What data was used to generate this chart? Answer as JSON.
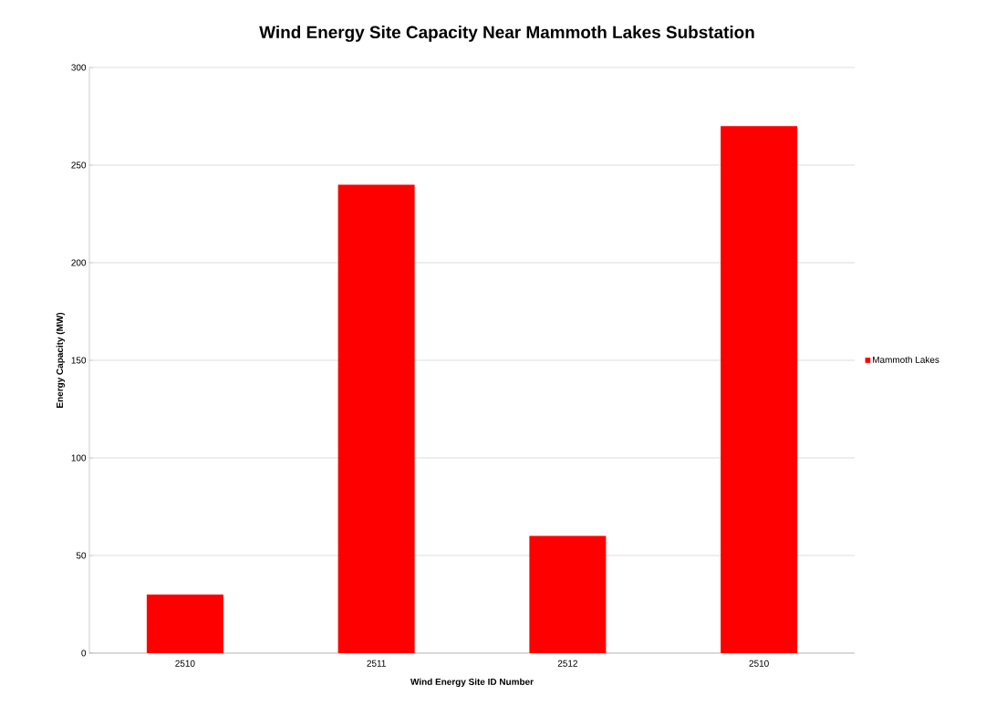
{
  "chart_data": {
    "type": "bar",
    "title": "Wind Energy Site Capacity Near Mammoth Lakes Substation",
    "xlabel": "Wind Energy Site ID Number",
    "ylabel": "Energy Capacity (MW)",
    "categories": [
      "2510",
      "2511",
      "2512",
      "2510"
    ],
    "series": [
      {
        "name": "Mammoth Lakes",
        "color": "#ff0000",
        "values": [
          30,
          240,
          60,
          270
        ]
      }
    ],
    "ylim": [
      0,
      300
    ],
    "yticks": [
      0,
      50,
      100,
      150,
      200,
      250,
      300
    ],
    "grid": "y",
    "legend": "right"
  }
}
